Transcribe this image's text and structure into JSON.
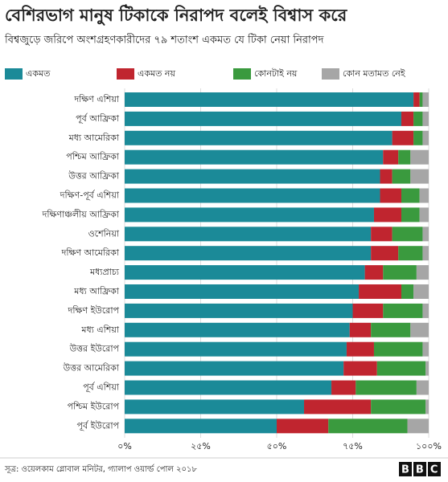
{
  "chart_data": {
    "type": "stacked-barh",
    "title": "বেশিরভাগ মানুষ টিকাকে নিরাপদ বলেই বিশ্বাস করে",
    "subtitle": "বিশ্বজুড়ে জরিপে অংশগ্রহণকারীদের ৭৯ শতাংশ একমত যে টিকা নেয়া নিরাপদ",
    "source": "সূত্র: ওয়েলকাম গ্লোবাল মনিটর, গ্যালাপ ওয়ার্ল্ড পোল ২০১৮",
    "logo": "BBC",
    "legend": "top",
    "grid": true,
    "categories": [
      "দক্ষিণ এশিয়া",
      "পূর্ব আফ্রিকা",
      "মধ্য আমেরিকা",
      "পশ্চিম আফ্রিকা",
      "উত্তর আফ্রিকা",
      "দক্ষিণ-পূর্ব এশিয়া",
      "দক্ষিণাঞ্চলীয় আফ্রিকা",
      "ওশেনিয়া",
      "দক্ষিণ আমেরিকা",
      "মধ্যপ্রাচ্য",
      "মধ্য আফ্রিকা",
      "দক্ষিণ ইউরোপ",
      "মধ্য এশিয়া",
      "উত্তর ইউরোপ",
      "উত্তর আমেরিকা",
      "পূর্ব এশিয়া",
      "পশ্চিম ইউরোপ",
      "পূর্ব ইউরোপ"
    ],
    "series": [
      {
        "name": "একমত",
        "color": "#1b8a98",
        "values": [
          95,
          91,
          88,
          85,
          84,
          84,
          82,
          81,
          81,
          79,
          77,
          75,
          74,
          73,
          72,
          68,
          59,
          50
        ]
      },
      {
        "name": "একমত নয়",
        "color": "#c0252f",
        "values": [
          2,
          4,
          7,
          5,
          4,
          7,
          9,
          7,
          9,
          6,
          14,
          10,
          7,
          9,
          11,
          8,
          22,
          17
        ]
      },
      {
        "name": "কোনটাই নয়",
        "color": "#3a9a3e",
        "values": [
          1,
          3,
          3,
          4,
          6,
          6,
          6,
          10,
          8,
          11,
          4,
          13,
          13,
          16,
          16,
          20,
          18,
          26
        ]
      },
      {
        "name": "কোন মতামত নেই",
        "color": "#a6a6a6",
        "values": [
          2,
          2,
          2,
          6,
          6,
          3,
          3,
          2,
          2,
          4,
          5,
          2,
          6,
          2,
          1,
          4,
          1,
          7
        ]
      }
    ],
    "xlim": [
      0,
      100
    ],
    "xticks": [
      {
        "value": 0,
        "label": "০%"
      },
      {
        "value": 25,
        "label": "২৫%"
      },
      {
        "value": 50,
        "label": "৫০%"
      },
      {
        "value": 75,
        "label": "৭৫%"
      },
      {
        "value": 100,
        "label": "১০০%"
      }
    ]
  }
}
